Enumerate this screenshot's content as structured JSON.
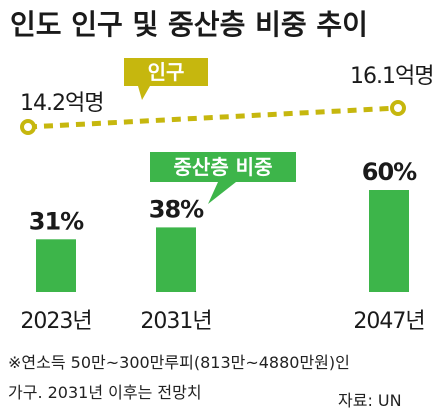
{
  "chart_data": {
    "type": "bar",
    "title": "인도 인구 및 중산층 비중 추이",
    "categories": [
      "2023년",
      "2031년",
      "2047년"
    ],
    "series": [
      {
        "name": "중산층 비중",
        "values": [
          31,
          38,
          60
        ],
        "value_labels": [
          "31%",
          "38%",
          "60%"
        ]
      },
      {
        "name": "인구",
        "type": "line",
        "points": [
          {
            "x": "2023년",
            "y": 14.2,
            "label": "14.2억명"
          },
          {
            "x": "2047년",
            "y": 16.1,
            "label": "16.1억명"
          }
        ]
      }
    ],
    "note_lines": [
      "※연소득 50만~300만루피(813만~4880만원)인",
      "가구. 2031년 이후는 전망치"
    ],
    "source": "자료: UN",
    "colors": {
      "bars": "#3db54a",
      "line": "#c6b70e",
      "population_label_bg": "#c6b70e",
      "share_label_bg": "#3db54a",
      "text": "#1a1a1a"
    }
  }
}
